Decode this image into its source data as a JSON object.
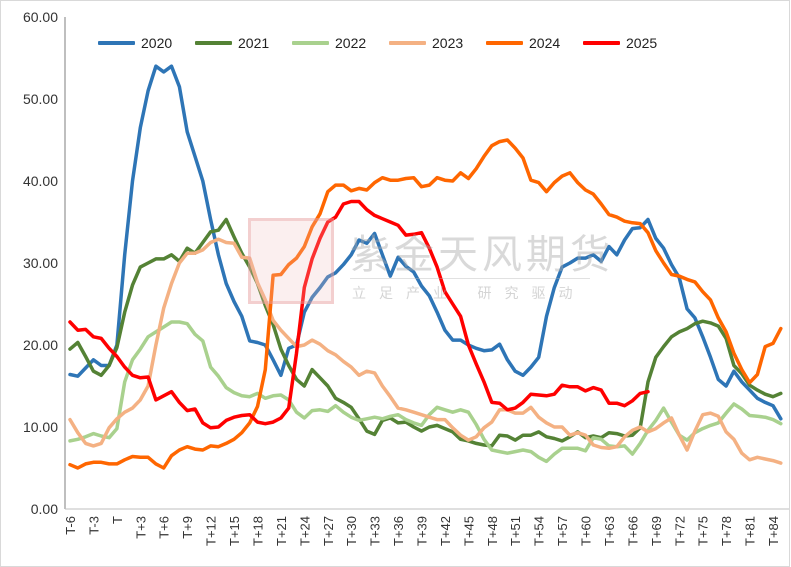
{
  "chart_data": {
    "type": "line",
    "title": "",
    "xlabel": "",
    "ylabel": "",
    "ylim": [
      0,
      60
    ],
    "y_ticks": [
      "0.00",
      "10.00",
      "20.00",
      "30.00",
      "40.00",
      "50.00",
      "60.00"
    ],
    "x_start_offset": -6,
    "x_end_offset": 85,
    "x_tick_labels": [
      "T-6",
      "T-3",
      "T",
      "T+3",
      "T+6",
      "T+9",
      "T+12",
      "T+15",
      "T+18",
      "T+21",
      "T+24",
      "T+27",
      "T+30",
      "T+33",
      "T+36",
      "T+39",
      "T+42",
      "T+45",
      "T+48",
      "T+51",
      "T+54",
      "T+57",
      "T+60",
      "T+63",
      "T+66",
      "T+69",
      "T+72",
      "T+75",
      "T+78",
      "T+81",
      "T+84"
    ],
    "legend_position": "top",
    "grid": false,
    "series": [
      {
        "name": "2020",
        "color": "#2E75B6",
        "values": [
          16.4,
          16.2,
          17.2,
          18.2,
          17.5,
          17.5,
          20,
          31,
          40,
          46.5,
          51,
          54,
          53.3,
          54,
          51.5,
          46,
          43,
          40,
          35.3,
          31,
          27.5,
          25.3,
          23.5,
          20.5,
          20.3,
          20,
          18.2,
          16.3,
          19.6,
          20,
          24,
          25.8,
          27,
          28.3,
          28.8,
          29.8,
          31,
          32.8,
          32.4,
          33.6,
          31,
          28.4,
          30.7,
          29.6,
          28.9,
          27.2,
          26,
          24,
          21.8,
          20.6,
          20.6,
          20,
          19.6,
          19.3,
          19.4,
          20.1,
          18.2,
          16.8,
          16.3,
          17.3,
          18.5,
          23.5,
          27,
          29.5,
          30,
          30.6,
          30.6,
          31,
          30.2,
          32,
          31,
          32.8,
          34.2,
          34.3,
          35.3,
          33,
          31.8,
          29.8,
          28.2,
          24.4,
          23.3,
          21,
          18.5,
          15.8,
          15,
          16.8,
          15.5,
          14.5,
          13.5,
          13,
          12.6,
          11
        ]
      },
      {
        "name": "2021",
        "color": "#548235",
        "values": [
          19.5,
          20.3,
          18.6,
          16.8,
          16.3,
          17.5,
          19.7,
          24,
          27.3,
          29.5,
          30,
          30.5,
          30.5,
          31,
          30.2,
          31.8,
          31.2,
          32.5,
          33.8,
          34,
          35.3,
          33.2,
          31.2,
          29.5,
          27.5,
          24.8,
          22.5,
          19.5,
          17.5,
          15.8,
          15,
          17,
          16,
          15,
          13.5,
          13,
          12.4,
          11,
          9.5,
          9.1,
          10.8,
          11.1,
          10.5,
          10.6,
          10,
          9.5,
          10,
          10.2,
          9.8,
          9.4,
          8.5,
          8.3,
          8,
          7.8,
          7.7,
          9,
          8.9,
          8.4,
          9,
          9,
          9.4,
          8.8,
          8.6,
          8.3,
          8.8,
          9.4,
          8.7,
          8.9,
          8.7,
          9.3,
          9.2,
          8.9,
          9,
          9.9,
          15.5,
          18.5,
          19.8,
          21,
          21.6,
          22,
          22.6,
          22.9,
          22.7,
          22.3,
          20.8,
          17.5,
          16.5,
          15.1,
          14.5,
          14,
          13.7,
          14.1
        ]
      },
      {
        "name": "2022",
        "color": "#A9D18E",
        "values": [
          8.3,
          8.5,
          8.8,
          9.2,
          8.9,
          8.7,
          9.8,
          15.5,
          18.2,
          19.5,
          21,
          21.6,
          22.2,
          22.8,
          22.8,
          22.6,
          21.3,
          20.5,
          17.3,
          16.2,
          14.8,
          14.2,
          13.8,
          13.7,
          14.1,
          13.5,
          13.8,
          13.9,
          13.3,
          11.8,
          11.1,
          12,
          12.1,
          11.9,
          12.6,
          11.8,
          11.2,
          10.8,
          11,
          11.2,
          11,
          11.3,
          11.5,
          10.9,
          10.5,
          10.2,
          11.5,
          12.4,
          12.1,
          11.8,
          12.1,
          11.8,
          10.3,
          8.5,
          7.2,
          7,
          6.8,
          7,
          7.2,
          7,
          6.3,
          5.8,
          6.7,
          7.4,
          7.4,
          7.4,
          7.1,
          8.7,
          8.5,
          7.7,
          7.6,
          7.7,
          6.7,
          8,
          9.6,
          10.8,
          12.3,
          10.6,
          9,
          8.4,
          9.3,
          9.8,
          10.2,
          10.5,
          11.7,
          12.8,
          12.2,
          11.4,
          11.3,
          11.2,
          10.9,
          10.4
        ]
      },
      {
        "name": "2023",
        "color": "#F4B183",
        "values": [
          10.9,
          9.3,
          8,
          7.7,
          8,
          9.9,
          11,
          11.8,
          12.3,
          13.3,
          15,
          20,
          24.5,
          27.5,
          30,
          31.2,
          31.2,
          31.6,
          32.5,
          32.9,
          32.5,
          32.4,
          30.7,
          30.6,
          27.6,
          25.5,
          23,
          21.8,
          20.8,
          19.8,
          20,
          20.6,
          20.1,
          19.3,
          18.8,
          18,
          17.3,
          16.3,
          16.8,
          16.6,
          15,
          13.7,
          12.3,
          12.1,
          11.8,
          11.5,
          11.2,
          10.9,
          10.9,
          9.9,
          9,
          8.4,
          8.8,
          9.9,
          10.6,
          12.1,
          12.1,
          11.7,
          11.7,
          12.4,
          11.2,
          10.5,
          10,
          10,
          9,
          9.3,
          9,
          7.8,
          7.5,
          7.4,
          7.6,
          8.8,
          9.6,
          10,
          9.4,
          9.8,
          10.5,
          11.1,
          9,
          7.2,
          9.5,
          11.5,
          11.7,
          11.3,
          9.4,
          8.5,
          6.8,
          6,
          6.3,
          6.1,
          5.9,
          5.6
        ]
      },
      {
        "name": "2024",
        "color": "#FF6600",
        "values": [
          5.4,
          5,
          5.5,
          5.7,
          5.7,
          5.5,
          5.5,
          6,
          6.4,
          6.3,
          6.3,
          5.5,
          5,
          6.5,
          7.2,
          7.6,
          7.3,
          7.2,
          7.7,
          7.6,
          8,
          8.5,
          9.3,
          10.5,
          12.5,
          17,
          28.5,
          28.6,
          29.8,
          30.6,
          32,
          34.4,
          36,
          38.7,
          39.5,
          39.5,
          38.8,
          39.1,
          38.9,
          39.8,
          40.4,
          40.1,
          40.1,
          40.3,
          40.4,
          39.3,
          39.5,
          40.4,
          40.1,
          40,
          41,
          40.3,
          41.5,
          43,
          44.3,
          44.8,
          45,
          44,
          42.8,
          40.1,
          39.8,
          38.7,
          39.8,
          40.6,
          41,
          39.8,
          38.9,
          38.4,
          37.2,
          35.9,
          35.6,
          35.1,
          34.9,
          34.8,
          33.7,
          31.5,
          30,
          28.6,
          28.4,
          28,
          27.7,
          26.5,
          25.5,
          23.3,
          21.6,
          19,
          17,
          15.4,
          16.4,
          19.8,
          20.2,
          22
        ]
      },
      {
        "name": "2025",
        "color": "#FF0000",
        "values": [
          22.8,
          21.8,
          21.9,
          21,
          20.8,
          19.6,
          18.6,
          17.3,
          16.3,
          16,
          16.1,
          13.3,
          13.8,
          14.3,
          13,
          12,
          12.2,
          10.5,
          9.9,
          10,
          10.8,
          11.2,
          11.4,
          11.5,
          10.6,
          10.4,
          10.6,
          11.1,
          12.3,
          19,
          27,
          30.5,
          33,
          35,
          35.6,
          37.2,
          37.5,
          37.5,
          36.5,
          35.8,
          35.4,
          35,
          34.6,
          33.4,
          33.5,
          33.7,
          31.8,
          29.5,
          26.5,
          25,
          23.5,
          20,
          17.7,
          15.5,
          13,
          12.9,
          12.1,
          12.3,
          13,
          14,
          13.9,
          13.8,
          14,
          15.1,
          14.9,
          14.9,
          14.4,
          14.8,
          14.5,
          12.9,
          12.9,
          12.6,
          13.2,
          14.1,
          14.3
        ]
      }
    ]
  },
  "watermark": {
    "logo_text": "紫金天风",
    "title": "紫金天风期货",
    "subtitle": "立足产业 研究驱动"
  }
}
